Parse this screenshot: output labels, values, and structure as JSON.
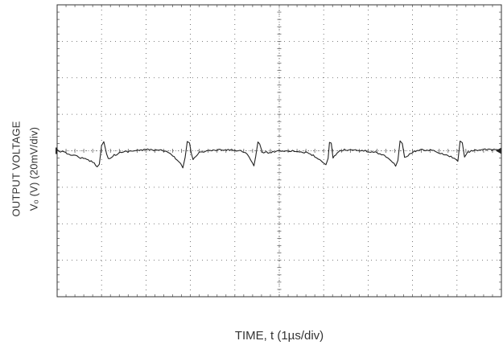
{
  "chart_data": {
    "type": "line",
    "title": "",
    "xlabel": "TIME, t (1µs/div)",
    "ylabel_lines": [
      "OUTPUT VOLTAGE",
      "Vₒ (V) (20mV/div)"
    ],
    "x_unit": "div",
    "y_unit": "div",
    "xlim": [
      0,
      10
    ],
    "ylim": [
      -4,
      4
    ],
    "grid": true,
    "grid_style": "dotted",
    "divisions": {
      "x": 10,
      "y": 8
    },
    "trigger_level": 0.0,
    "series": [
      {
        "color": "#222222",
        "x": [
          0.0,
          0.15,
          0.3,
          0.45,
          0.6,
          0.8,
          0.9,
          0.95,
          1.0,
          1.05,
          1.08,
          1.15,
          1.25,
          1.45,
          1.7,
          2.0,
          2.3,
          2.5,
          2.6,
          2.7,
          2.78,
          2.83,
          2.88,
          2.93,
          2.98,
          3.02,
          3.06,
          3.12,
          3.2,
          3.4,
          3.7,
          4.0,
          4.2,
          4.28,
          4.36,
          4.43,
          4.47,
          4.52,
          4.56,
          4.62,
          4.75,
          5.0,
          5.3,
          5.6,
          5.8,
          5.95,
          6.05,
          6.1,
          6.13,
          6.17,
          6.21,
          6.27,
          6.4,
          6.6,
          6.9,
          7.2,
          7.4,
          7.55,
          7.62,
          7.67,
          7.72,
          7.77,
          7.82,
          7.9,
          8.1,
          8.4,
          8.7,
          8.9,
          9.02,
          9.07,
          9.12,
          9.17,
          9.21,
          9.28,
          9.4,
          9.6,
          9.8,
          10.0
        ],
        "y": [
          0.02,
          -0.05,
          -0.1,
          -0.15,
          -0.22,
          -0.3,
          -0.42,
          -0.38,
          0.15,
          0.25,
          0.08,
          -0.22,
          -0.14,
          -0.04,
          0.0,
          0.03,
          0.02,
          -0.05,
          -0.14,
          -0.25,
          -0.36,
          -0.45,
          -0.2,
          0.25,
          0.22,
          -0.05,
          -0.22,
          -0.15,
          -0.05,
          0.0,
          0.02,
          0.02,
          -0.02,
          -0.1,
          -0.28,
          -0.4,
          -0.18,
          0.24,
          0.2,
          -0.05,
          -0.05,
          0.0,
          0.0,
          -0.05,
          -0.15,
          -0.3,
          -0.4,
          -0.22,
          0.24,
          0.2,
          -0.2,
          -0.1,
          0.02,
          0.03,
          0.0,
          -0.05,
          -0.15,
          -0.3,
          -0.42,
          -0.28,
          0.26,
          0.21,
          -0.2,
          -0.12,
          0.02,
          0.02,
          -0.1,
          -0.18,
          -0.3,
          0.26,
          0.24,
          -0.18,
          -0.08,
          -0.02,
          0.02,
          0.03,
          0.02,
          0.04
        ]
      }
    ]
  }
}
